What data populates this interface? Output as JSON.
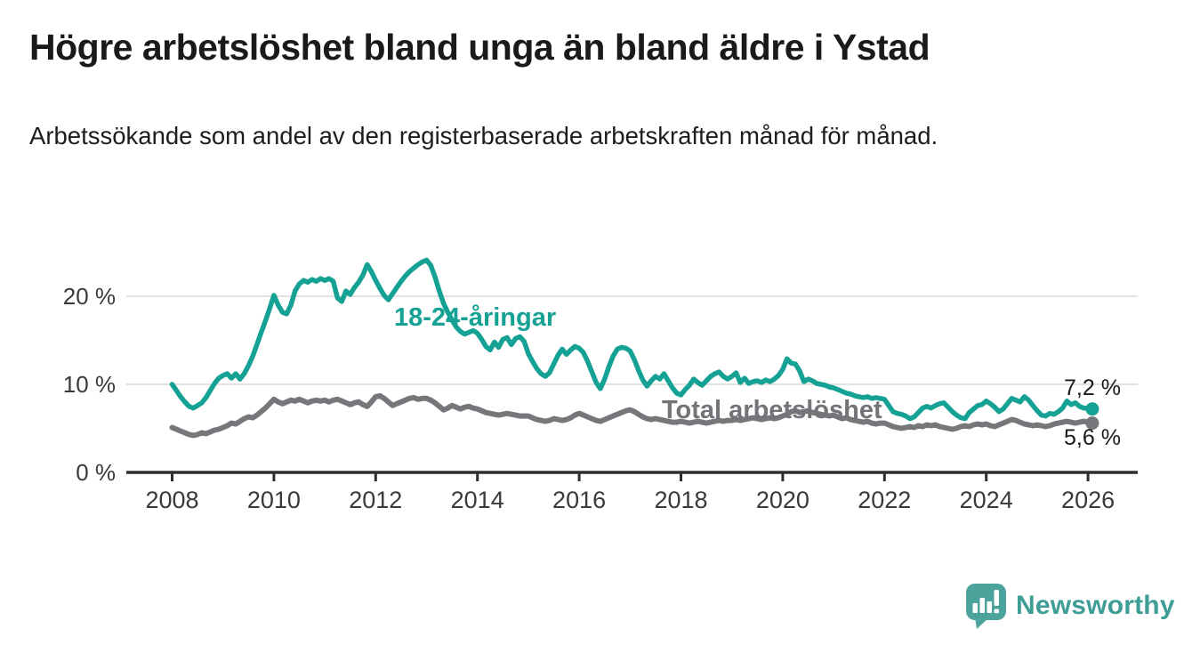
{
  "header": {
    "title": "Högre arbetslöshet bland unga än bland äldre i Ystad",
    "subtitle": "Arbetssökande som andel av den registerbaserade arbetskraften månad för månad."
  },
  "footer": {
    "brand": "Newsworthy",
    "logo_icon": "speech-bubble-bar-chart-icon"
  },
  "colors": {
    "young_series": "#15a294",
    "total_series": "#77777b",
    "grid": "#d9d9d9",
    "axis": "#2e2e2e",
    "tick_label": "#3a3a3a",
    "text": "#1a1a1a",
    "brand": "#3e9d95",
    "brand_bubble": "#4ba39b"
  },
  "chart_data": {
    "type": "line",
    "title": "Högre arbetslöshet bland unga än bland äldre i Ystad",
    "subtitle": "Arbetssökande som andel av den registerbaserade arbetskraften månad för månad.",
    "xlabel": "",
    "ylabel": "",
    "unit": "%",
    "frequency": "monthly",
    "start": "2008-01",
    "end": "2026-02",
    "grid": "horizontal",
    "legend_position": "inline-labels",
    "x_axis": {
      "ticks": [
        {
          "value": 2008,
          "label": "2008"
        },
        {
          "value": 2010,
          "label": "2010"
        },
        {
          "value": 2012,
          "label": "2012"
        },
        {
          "value": 2014,
          "label": "2014"
        },
        {
          "value": 2016,
          "label": "2016"
        },
        {
          "value": 2018,
          "label": "2018"
        },
        {
          "value": 2020,
          "label": "2020"
        },
        {
          "value": 2022,
          "label": "2022"
        },
        {
          "value": 2024,
          "label": "2024"
        },
        {
          "value": 2026,
          "label": "2026"
        }
      ]
    },
    "y_axis": {
      "range": [
        0,
        25
      ],
      "ticks": [
        {
          "value": 0,
          "label": "0 %"
        },
        {
          "value": 10,
          "label": "10 %"
        },
        {
          "value": 20,
          "label": "20 %"
        }
      ]
    },
    "series": [
      {
        "name": "18-24-åringar",
        "color": "#15a294",
        "line_width": 5.5,
        "end_label": "7,2 %",
        "end_value": 7.2,
        "start_year": 2008,
        "values": [
          10.0,
          9.3,
          8.6,
          8.0,
          7.5,
          7.3,
          7.6,
          7.9,
          8.5,
          9.3,
          10.1,
          10.7,
          11.0,
          11.2,
          10.7,
          11.2,
          10.6,
          11.2,
          12.1,
          13.2,
          14.5,
          15.9,
          17.2,
          18.6,
          20.1,
          19.0,
          18.2,
          18.0,
          19.0,
          20.6,
          21.4,
          21.8,
          21.6,
          21.9,
          21.7,
          22.0,
          21.8,
          22.0,
          21.7,
          19.8,
          19.4,
          20.6,
          20.2,
          21.0,
          21.6,
          22.4,
          23.6,
          22.8,
          21.8,
          20.9,
          20.1,
          19.6,
          20.3,
          21.0,
          21.7,
          22.3,
          22.8,
          23.2,
          23.6,
          23.9,
          24.1,
          23.5,
          22.2,
          20.6,
          19.2,
          18.2,
          17.3,
          16.5,
          16.0,
          15.7,
          15.9,
          16.1,
          15.8,
          15.1,
          14.3,
          13.9,
          14.8,
          14.2,
          15.1,
          15.3,
          14.5,
          15.2,
          15.4,
          14.9,
          13.5,
          12.6,
          11.8,
          11.2,
          10.9,
          11.3,
          12.3,
          13.3,
          14.0,
          13.4,
          13.9,
          14.3,
          14.1,
          13.6,
          12.6,
          11.4,
          10.2,
          9.5,
          10.6,
          12.0,
          13.2,
          14.0,
          14.2,
          14.1,
          13.8,
          12.8,
          11.6,
          10.5,
          9.8,
          10.4,
          10.9,
          10.6,
          11.2,
          10.4,
          9.6,
          9.0,
          8.8,
          9.4,
          9.9,
          10.6,
          10.2,
          9.9,
          10.4,
          10.9,
          11.2,
          11.4,
          10.9,
          10.6,
          10.9,
          11.3,
          10.2,
          10.7,
          10.1,
          10.3,
          10.4,
          10.2,
          10.5,
          10.3,
          10.6,
          11.0,
          11.7,
          12.9,
          12.4,
          12.3,
          11.5,
          10.3,
          10.6,
          10.4,
          10.1,
          10.0,
          9.9,
          9.7,
          9.6,
          9.4,
          9.2,
          9.0,
          8.9,
          8.7,
          8.6,
          8.5,
          8.6,
          8.4,
          8.5,
          8.4,
          8.3,
          7.6,
          6.9,
          6.7,
          6.6,
          6.4,
          6.1,
          6.3,
          6.8,
          7.3,
          7.5,
          7.3,
          7.6,
          7.8,
          7.9,
          7.4,
          6.9,
          6.5,
          6.2,
          6.1,
          6.8,
          7.2,
          7.6,
          7.7,
          8.1,
          7.8,
          7.4,
          6.9,
          7.2,
          7.8,
          8.4,
          8.2,
          8.0,
          8.6,
          8.2,
          7.6,
          7.0,
          6.5,
          6.4,
          6.7,
          6.6,
          6.9,
          7.3,
          8.1,
          7.7,
          7.9,
          7.5,
          7.3,
          7.3,
          7.2
        ]
      },
      {
        "name": "Total arbetslöshet",
        "color": "#77777b",
        "line_width": 6,
        "end_label": "5,6 %",
        "end_value": 5.6,
        "start_year": 2008,
        "values": [
          5.1,
          4.9,
          4.7,
          4.5,
          4.3,
          4.2,
          4.3,
          4.5,
          4.4,
          4.6,
          4.8,
          4.9,
          5.1,
          5.3,
          5.6,
          5.5,
          5.8,
          6.1,
          6.3,
          6.2,
          6.5,
          6.9,
          7.3,
          7.8,
          8.3,
          8.0,
          7.8,
          8.0,
          8.2,
          8.1,
          8.3,
          8.1,
          7.9,
          8.1,
          8.2,
          8.1,
          8.2,
          8.0,
          8.2,
          8.3,
          8.1,
          7.9,
          7.7,
          7.9,
          8.0,
          7.7,
          7.5,
          8.0,
          8.6,
          8.7,
          8.4,
          8.0,
          7.6,
          7.8,
          8.0,
          8.2,
          8.4,
          8.5,
          8.3,
          8.4,
          8.4,
          8.2,
          7.9,
          7.5,
          7.1,
          7.3,
          7.6,
          7.4,
          7.2,
          7.4,
          7.5,
          7.3,
          7.2,
          7.0,
          6.8,
          6.7,
          6.6,
          6.5,
          6.6,
          6.7,
          6.6,
          6.5,
          6.4,
          6.4,
          6.4,
          6.2,
          6.0,
          5.9,
          5.8,
          5.9,
          6.1,
          6.0,
          5.9,
          6.0,
          6.2,
          6.5,
          6.7,
          6.5,
          6.3,
          6.1,
          5.9,
          5.8,
          6.0,
          6.2,
          6.4,
          6.6,
          6.8,
          7.0,
          7.1,
          6.9,
          6.6,
          6.3,
          6.1,
          6.0,
          6.1,
          6.0,
          5.9,
          5.8,
          5.7,
          5.7,
          5.8,
          5.7,
          5.6,
          5.7,
          5.8,
          5.7,
          5.6,
          5.7,
          5.8,
          5.9,
          5.8,
          5.9,
          5.9,
          6.0,
          5.9,
          6.0,
          6.1,
          6.2,
          6.1,
          6.0,
          6.1,
          6.2,
          6.1,
          6.2,
          6.4,
          6.6,
          6.9,
          7.0,
          6.8,
          6.9,
          7.0,
          6.8,
          6.7,
          6.6,
          6.5,
          6.4,
          6.5,
          6.3,
          6.1,
          6.2,
          6.0,
          5.9,
          5.8,
          5.7,
          5.8,
          5.6,
          5.5,
          5.6,
          5.6,
          5.4,
          5.2,
          5.1,
          5.0,
          5.1,
          5.2,
          5.1,
          5.3,
          5.2,
          5.4,
          5.3,
          5.4,
          5.2,
          5.1,
          5.0,
          4.9,
          5.0,
          5.2,
          5.3,
          5.2,
          5.4,
          5.5,
          5.4,
          5.5,
          5.3,
          5.2,
          5.4,
          5.6,
          5.8,
          6.0,
          5.9,
          5.7,
          5.5,
          5.4,
          5.3,
          5.4,
          5.3,
          5.2,
          5.3,
          5.5,
          5.6,
          5.7,
          5.8,
          5.7,
          5.6,
          5.7,
          5.8,
          5.7,
          5.6
        ]
      }
    ]
  }
}
